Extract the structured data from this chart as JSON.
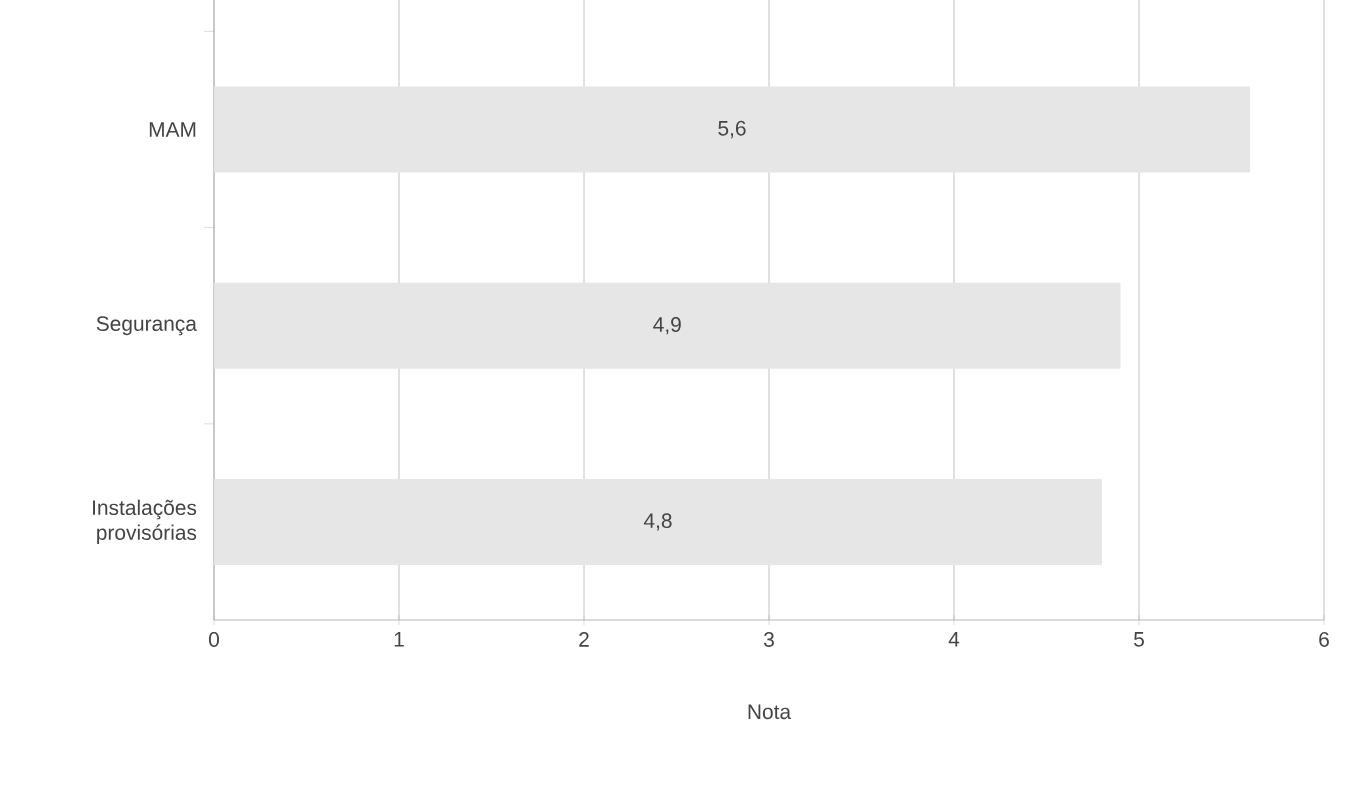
{
  "chart_data": {
    "type": "bar",
    "orientation": "horizontal",
    "xlabel": "Nota",
    "categories": [
      "MAM",
      "Segurança",
      "Instalações provisórias"
    ],
    "values": [
      5.6,
      4.9,
      4.8
    ],
    "value_labels": [
      "5,6",
      "4,9",
      "4,8"
    ],
    "color": "#e6e6e6",
    "xlim": [
      0,
      6
    ],
    "xticks": [
      0,
      1,
      2,
      3,
      4,
      5,
      6
    ],
    "grid": "x"
  }
}
